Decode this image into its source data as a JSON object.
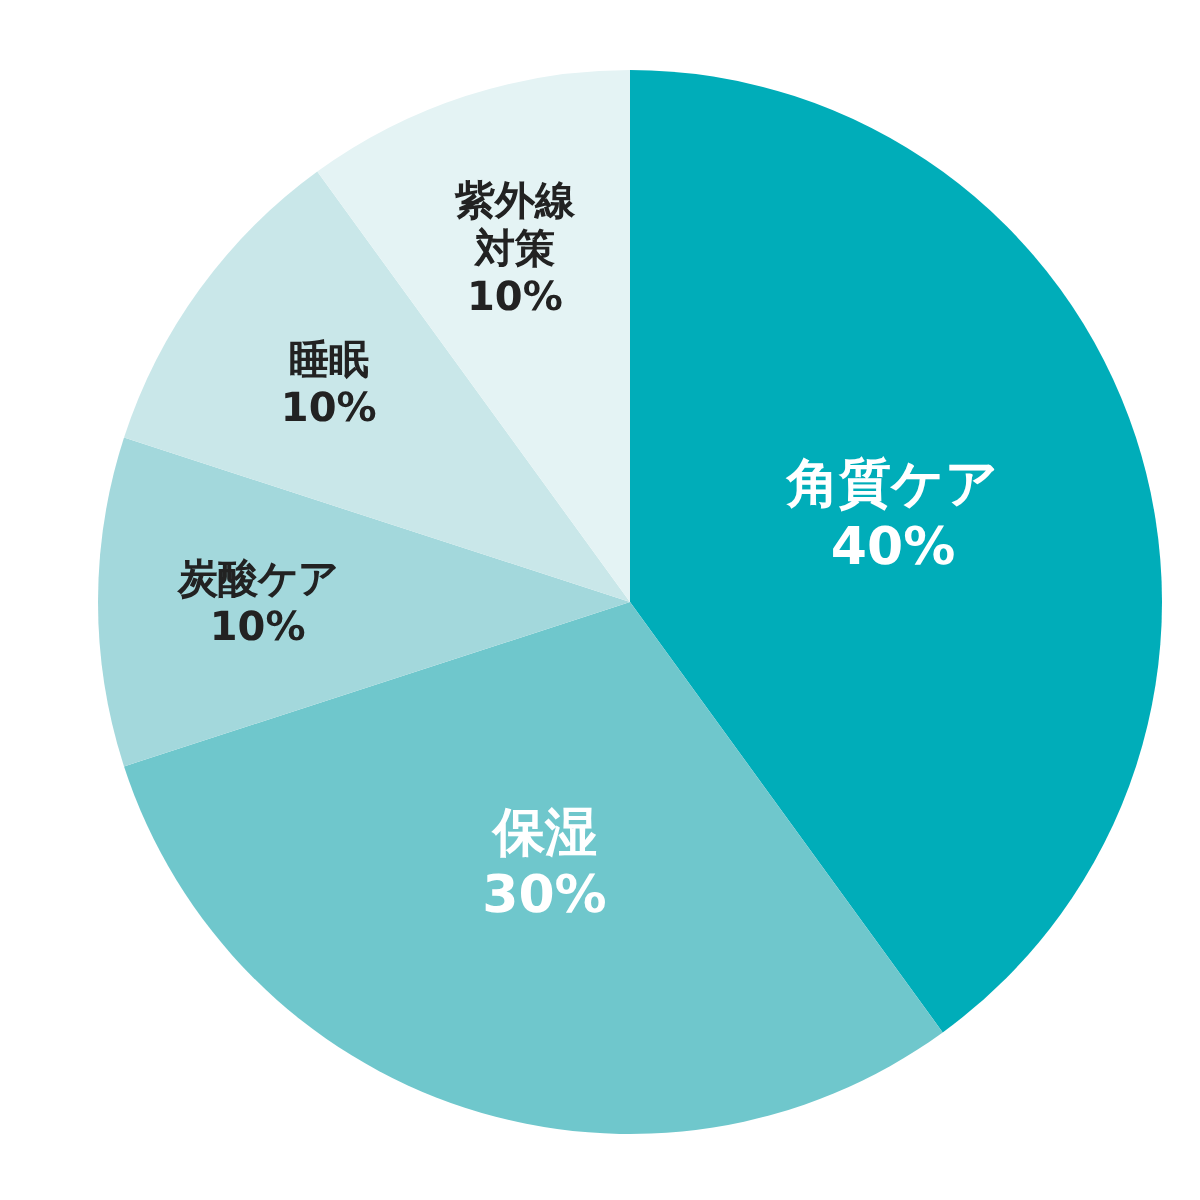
{
  "chart_data": {
    "type": "pie",
    "categories": [
      "角質ケア",
      "保湿",
      "炭酸ケア",
      "睡眠",
      "紫外線対策"
    ],
    "values": [
      40,
      30,
      10,
      10,
      10
    ],
    "value_labels": [
      "40%",
      "30%",
      "10%",
      "10%",
      "10%"
    ],
    "colors": [
      "#00adb9",
      "#6fc7cc",
      "#a3d8dc",
      "#c9e7e9",
      "#e4f3f4"
    ]
  }
}
